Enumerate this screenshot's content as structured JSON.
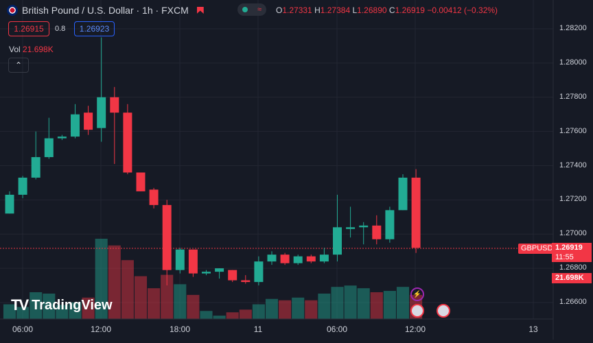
{
  "header": {
    "symbol_title": "British Pound / U.S. Dollar · 1h · FXCM",
    "market_status_icon": "market-closed-icon",
    "ohlc": {
      "o_label": "O",
      "o": "1.27331",
      "h_label": "H",
      "h": "1.27384",
      "l_label": "L",
      "l": "1.26890",
      "c_label": "C",
      "c": "1.26919",
      "change": "−0.00412 (−0.32%)"
    }
  },
  "trade": {
    "sell_price": "1.26915",
    "spread": "0.8",
    "buy_price": "1.26923"
  },
  "volume": {
    "label": "Vol",
    "value": "21.698K"
  },
  "price_scale": {
    "labels": [
      "1.28200",
      "1.28000",
      "1.27800",
      "1.27600",
      "1.27400",
      "1.27200",
      "1.27000",
      "1.26800",
      "1.26600"
    ],
    "symbol_tag": "GBPUSD",
    "last_price": "1.26919",
    "countdown": "11:55",
    "volume_tag": "21.698K"
  },
  "time_axis": {
    "labels": [
      "06:00",
      "12:00",
      "18:00",
      "11",
      "06:00",
      "12:00",
      "13"
    ]
  },
  "colors": {
    "up": "#22ab94",
    "down": "#f23645",
    "bg": "#161a25",
    "grid": "#232632"
  },
  "branding": {
    "name": "TradingView"
  },
  "chart_data": {
    "type": "candlestick",
    "ylim": [
      1.2655,
      1.2832
    ],
    "candles": [
      {
        "o": 1.2712,
        "h": 1.2725,
        "l": 1.2712,
        "c": 1.2723,
        "v": 22,
        "up": true
      },
      {
        "o": 1.2723,
        "h": 1.2734,
        "l": 1.2721,
        "c": 1.2733,
        "v": 18,
        "up": true
      },
      {
        "o": 1.2733,
        "h": 1.276,
        "l": 1.2732,
        "c": 1.2745,
        "v": 40,
        "up": true
      },
      {
        "o": 1.2745,
        "h": 1.2768,
        "l": 1.2744,
        "c": 1.2756,
        "v": 38,
        "up": true
      },
      {
        "o": 1.2756,
        "h": 1.2758,
        "l": 1.2755,
        "c": 1.2757,
        "v": 21,
        "up": true
      },
      {
        "o": 1.2757,
        "h": 1.2776,
        "l": 1.2756,
        "c": 1.277,
        "v": 25,
        "up": true
      },
      {
        "o": 1.2771,
        "h": 1.2775,
        "l": 1.2758,
        "c": 1.2761,
        "v": 32,
        "up": false
      },
      {
        "o": 1.2762,
        "h": 1.2815,
        "l": 1.2754,
        "c": 1.278,
        "v": 120,
        "up": true
      },
      {
        "o": 1.278,
        "h": 1.2786,
        "l": 1.2741,
        "c": 1.2771,
        "v": 110,
        "up": false
      },
      {
        "o": 1.2771,
        "h": 1.2776,
        "l": 1.2735,
        "c": 1.2736,
        "v": 88,
        "up": false
      },
      {
        "o": 1.2736,
        "h": 1.2736,
        "l": 1.2725,
        "c": 1.2725,
        "v": 64,
        "up": false
      },
      {
        "o": 1.2726,
        "h": 1.2727,
        "l": 1.2715,
        "c": 1.2717,
        "v": 46,
        "up": false
      },
      {
        "o": 1.2717,
        "h": 1.272,
        "l": 1.267,
        "c": 1.2679,
        "v": 66,
        "up": false
      },
      {
        "o": 1.2679,
        "h": 1.2692,
        "l": 1.2677,
        "c": 1.2691,
        "v": 52,
        "up": true
      },
      {
        "o": 1.2691,
        "h": 1.2691,
        "l": 1.2675,
        "c": 1.2677,
        "v": 36,
        "up": false
      },
      {
        "o": 1.2677,
        "h": 1.2679,
        "l": 1.2676,
        "c": 1.2678,
        "v": 12,
        "up": true
      },
      {
        "o": 1.2678,
        "h": 1.268,
        "l": 1.2674,
        "c": 1.268,
        "v": 5,
        "up": true
      },
      {
        "o": 1.2679,
        "h": 1.2679,
        "l": 1.2672,
        "c": 1.2673,
        "v": 10,
        "up": false
      },
      {
        "o": 1.2673,
        "h": 1.2676,
        "l": 1.2671,
        "c": 1.2672,
        "v": 14,
        "up": false
      },
      {
        "o": 1.2672,
        "h": 1.2687,
        "l": 1.267,
        "c": 1.2684,
        "v": 22,
        "up": true
      },
      {
        "o": 1.2684,
        "h": 1.269,
        "l": 1.2682,
        "c": 1.2688,
        "v": 30,
        "up": true
      },
      {
        "o": 1.2688,
        "h": 1.2689,
        "l": 1.2682,
        "c": 1.2683,
        "v": 28,
        "up": false
      },
      {
        "o": 1.2683,
        "h": 1.2688,
        "l": 1.2682,
        "c": 1.2687,
        "v": 32,
        "up": true
      },
      {
        "o": 1.2687,
        "h": 1.2688,
        "l": 1.2683,
        "c": 1.2684,
        "v": 28,
        "up": false
      },
      {
        "o": 1.2684,
        "h": 1.2692,
        "l": 1.2683,
        "c": 1.2688,
        "v": 38,
        "up": true
      },
      {
        "o": 1.2688,
        "h": 1.2723,
        "l": 1.2684,
        "c": 1.2704,
        "v": 48,
        "up": true
      },
      {
        "o": 1.2703,
        "h": 1.2716,
        "l": 1.2698,
        "c": 1.2704,
        "v": 50,
        "up": true
      },
      {
        "o": 1.2704,
        "h": 1.2707,
        "l": 1.2694,
        "c": 1.2705,
        "v": 46,
        "up": true
      },
      {
        "o": 1.2705,
        "h": 1.2711,
        "l": 1.2694,
        "c": 1.2697,
        "v": 40,
        "up": false
      },
      {
        "o": 1.2697,
        "h": 1.2716,
        "l": 1.2695,
        "c": 1.2714,
        "v": 42,
        "up": true
      },
      {
        "o": 1.2714,
        "h": 1.2735,
        "l": 1.2714,
        "c": 1.2733,
        "v": 48,
        "up": true
      },
      {
        "o": 1.2733,
        "h": 1.2738,
        "l": 1.2689,
        "c": 1.2692,
        "v": 36,
        "up": false
      }
    ]
  }
}
